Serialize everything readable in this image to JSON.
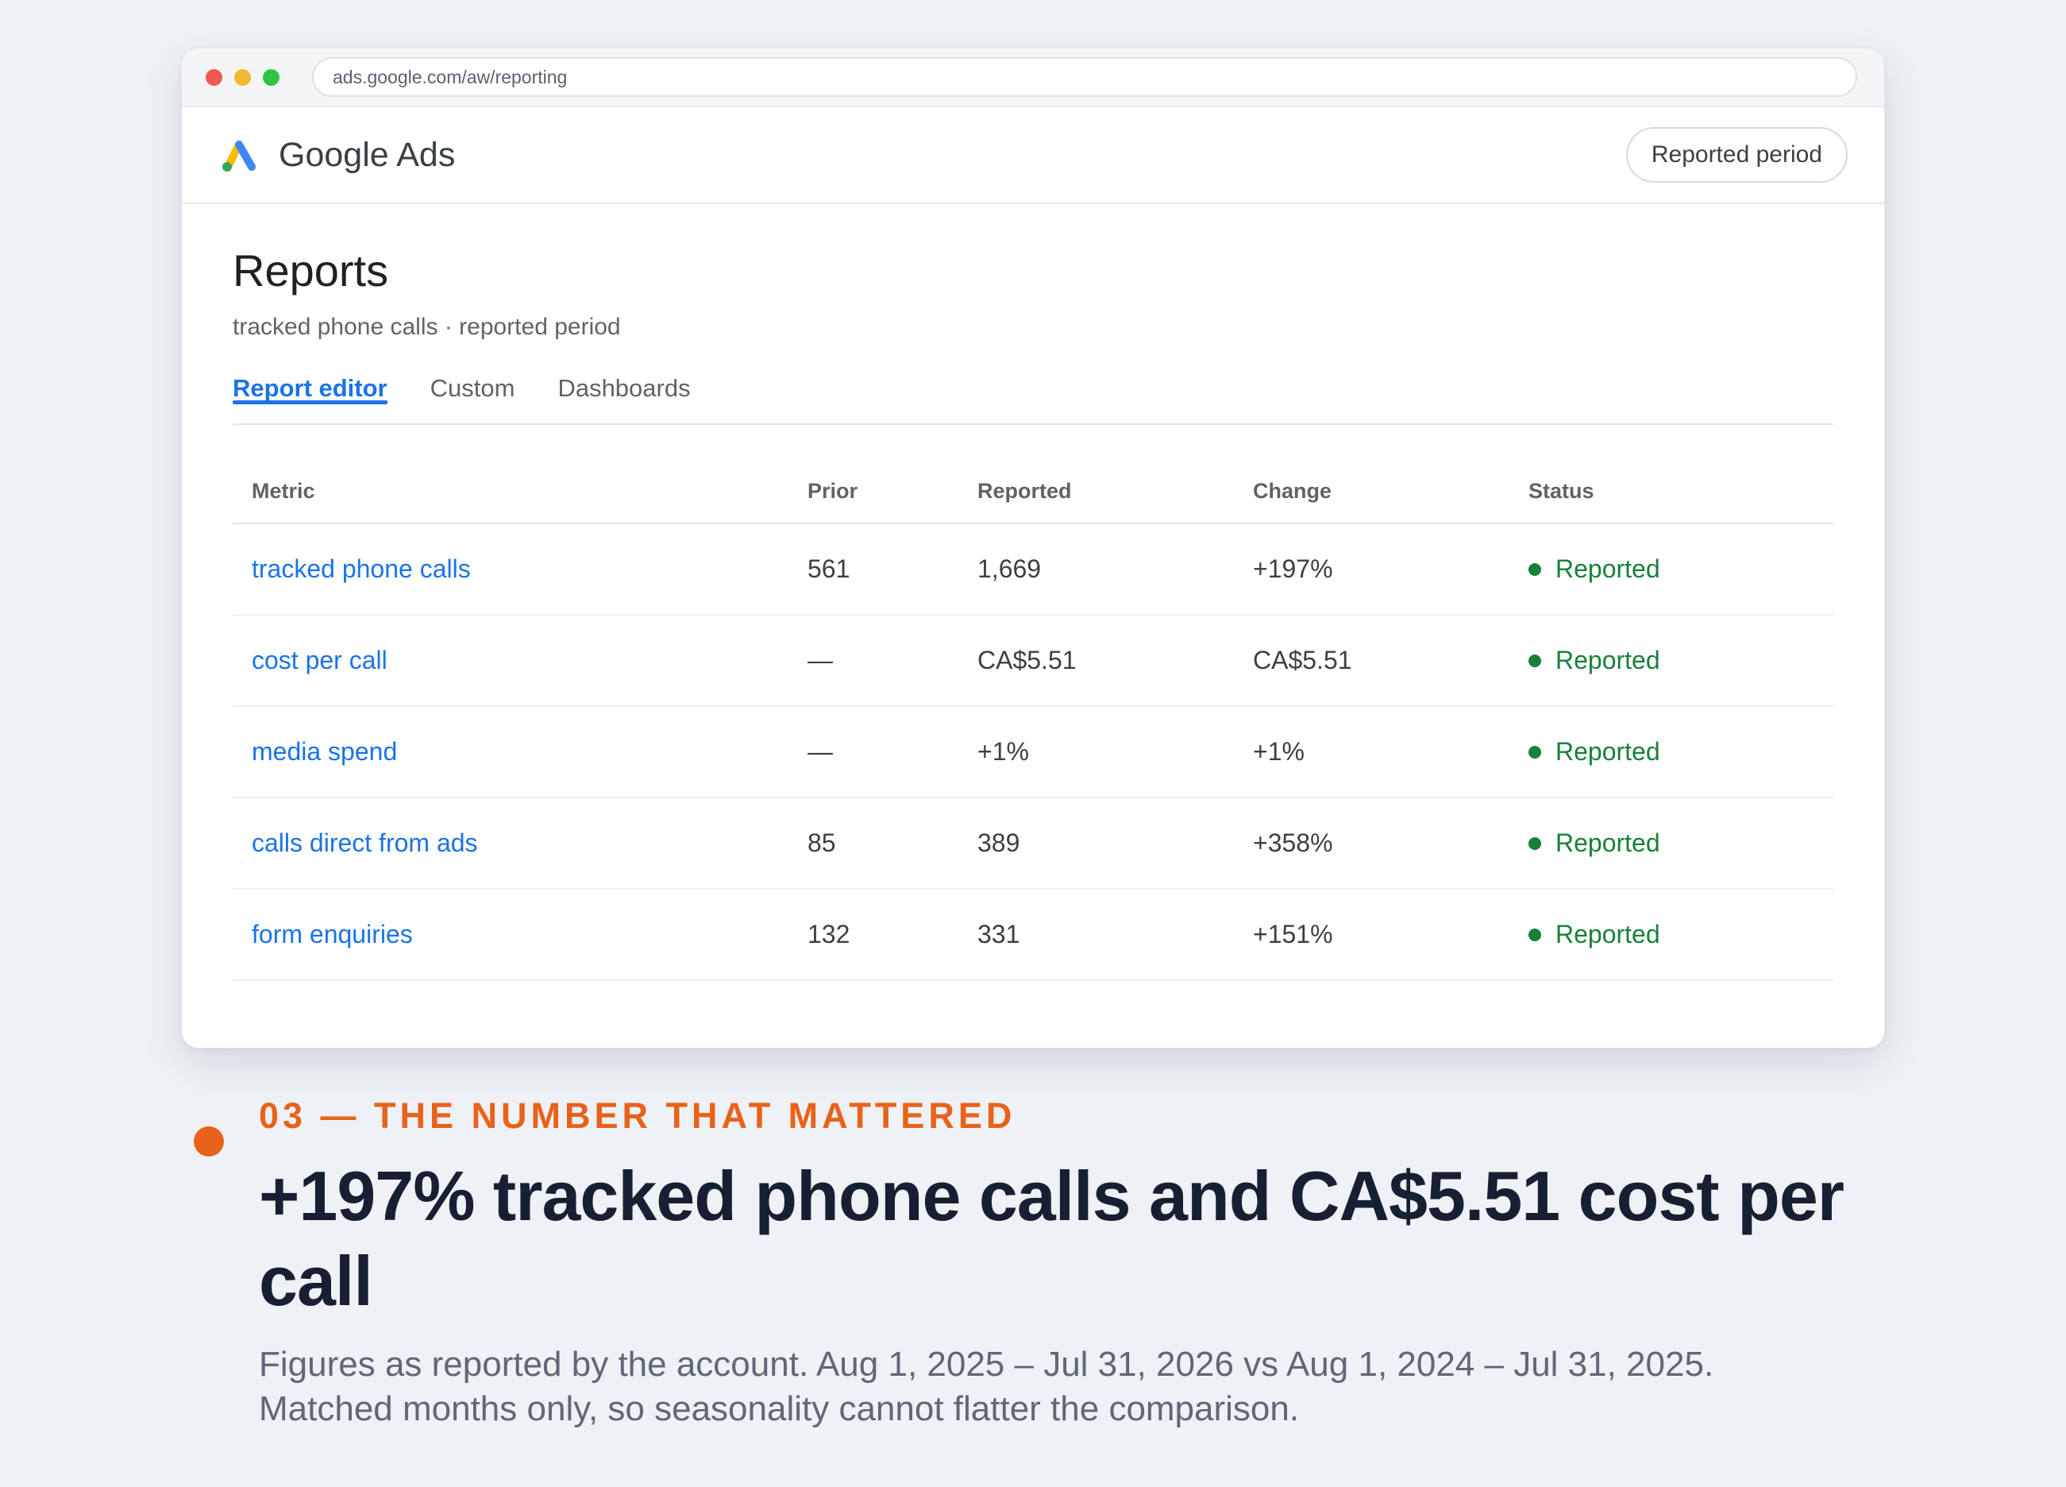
{
  "browser": {
    "url": "ads.google.com/aw/reporting"
  },
  "app": {
    "name": "Google Ads",
    "period_button": "Reported period"
  },
  "page": {
    "title": "Reports",
    "subtitle": "tracked phone calls · reported period",
    "tabs": [
      "Report editor",
      "Custom",
      "Dashboards"
    ],
    "active_tab": "Report editor"
  },
  "table": {
    "headers": {
      "metric": "Metric",
      "prior": "Prior",
      "reported": "Reported",
      "change": "Change",
      "status": "Status"
    },
    "rows": [
      {
        "metric": "tracked phone calls",
        "prior": "561",
        "reported": "1,669",
        "change": "+197%",
        "status": "Reported"
      },
      {
        "metric": "cost per call",
        "prior": "—",
        "reported": "CA$5.51",
        "change": "CA$5.51",
        "status": "Reported"
      },
      {
        "metric": "media spend",
        "prior": "—",
        "reported": "+1%",
        "change": "+1%",
        "status": "Reported"
      },
      {
        "metric": "calls direct from ads",
        "prior": "85",
        "reported": "389",
        "change": "+358%",
        "status": "Reported"
      },
      {
        "metric": "form enquiries",
        "prior": "132",
        "reported": "331",
        "change": "+151%",
        "status": "Reported"
      }
    ]
  },
  "caption": {
    "eyebrow": "03 — THE NUMBER THAT MATTERED",
    "headline": "+197% tracked phone calls and CA$5.51 cost per call",
    "note": "Figures as reported by the account. Aug 1, 2025 – Jul 31, 2026 vs Aug 1, 2024 – Jul 31, 2025. Matched months only, so seasonality cannot flatter the comparison."
  },
  "colors": {
    "accent_blue": "#1a73e8",
    "status_green": "#188038",
    "eyebrow_orange": "#e8621a",
    "headline_navy": "#172033",
    "background": "#eef1f5"
  },
  "icons": {
    "logo": "google-ads-logo",
    "window_controls": [
      "close-dot",
      "minimize-dot",
      "maximize-dot"
    ],
    "status": "status-dot"
  }
}
